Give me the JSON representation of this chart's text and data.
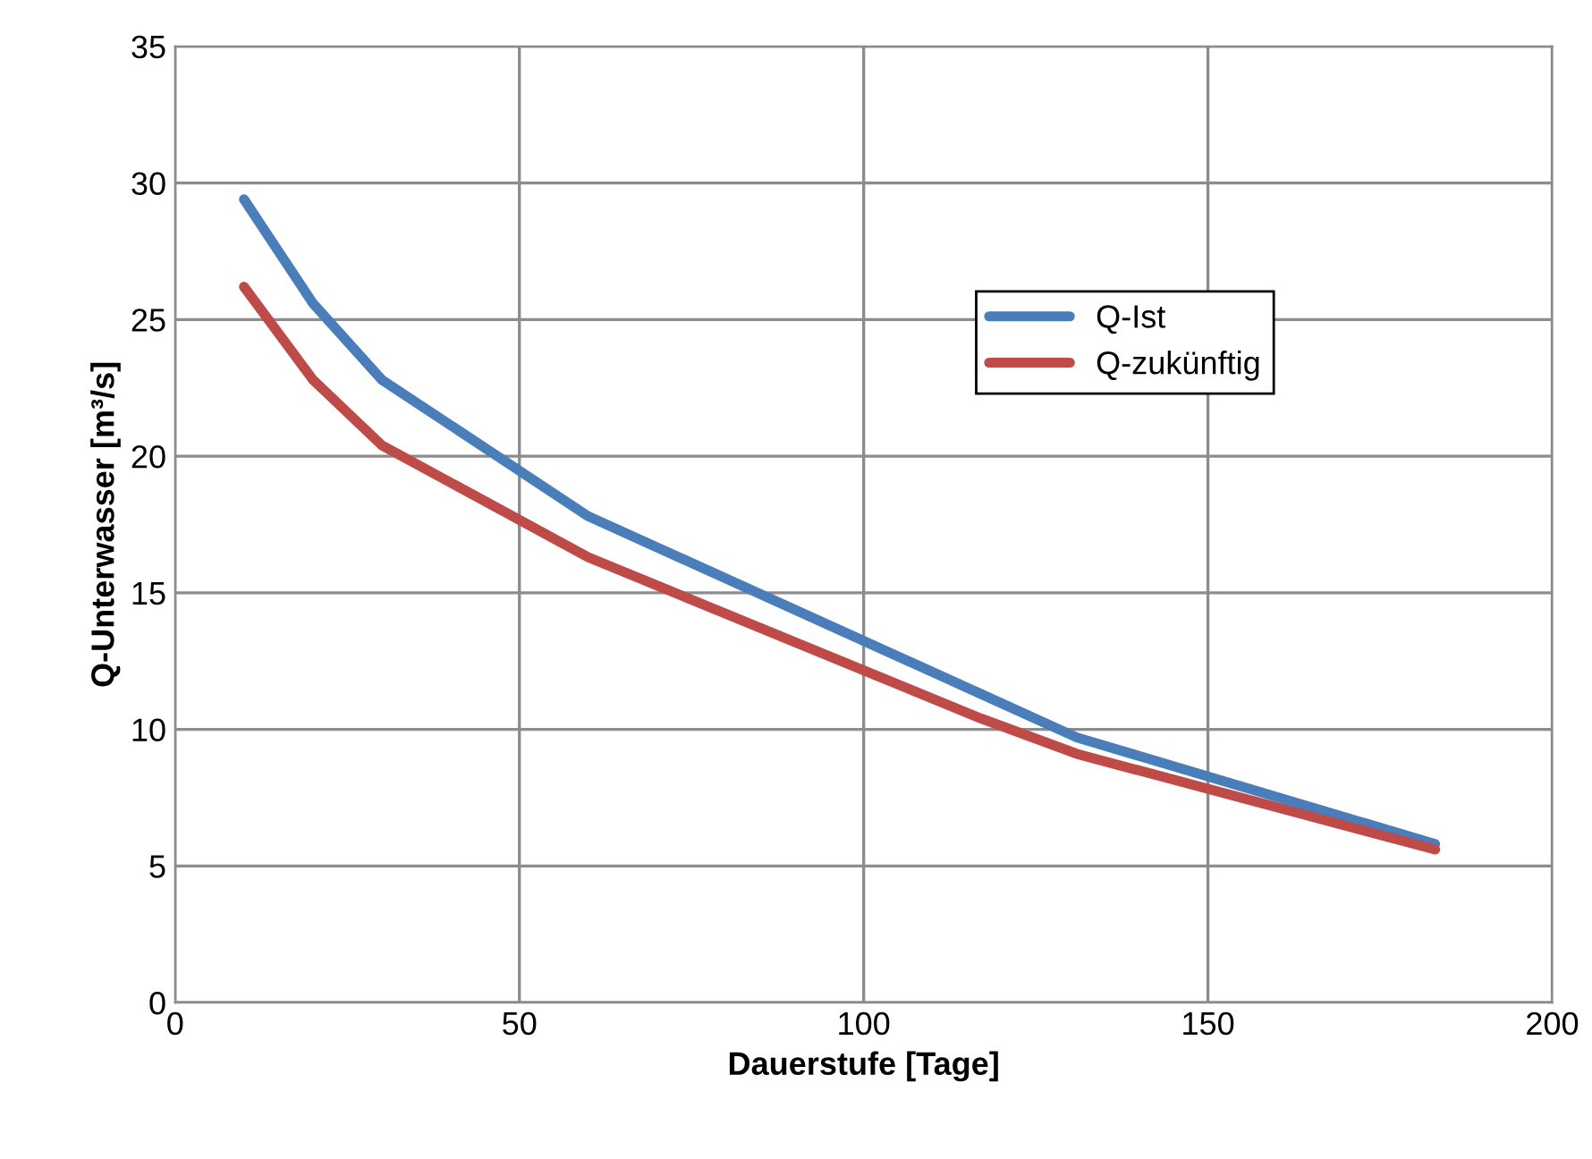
{
  "chart_data": {
    "type": "line",
    "xlabel": "Dauerstufe [Tage]",
    "ylabel": "Q-Unterwasser [m³/s]",
    "x": [
      10,
      20,
      30,
      60,
      117,
      131,
      183
    ],
    "series": [
      {
        "name": "Q-Ist",
        "color": "#4a7ebb",
        "values": [
          29.4,
          25.6,
          22.8,
          17.8,
          11.3,
          9.7,
          5.8
        ]
      },
      {
        "name": "Q-zukünftig",
        "color": "#be4b48",
        "values": [
          26.2,
          22.8,
          20.4,
          16.3,
          10.4,
          9.1,
          5.6
        ]
      }
    ],
    "xlim": [
      0,
      200
    ],
    "xticks": [
      0,
      50,
      100,
      150,
      200
    ],
    "ylim": [
      0,
      35
    ],
    "yticks": [
      0,
      5,
      10,
      15,
      20,
      25,
      30,
      35
    ],
    "grid": true,
    "legend": "top right",
    "marker": "none",
    "line_style": "solid"
  }
}
